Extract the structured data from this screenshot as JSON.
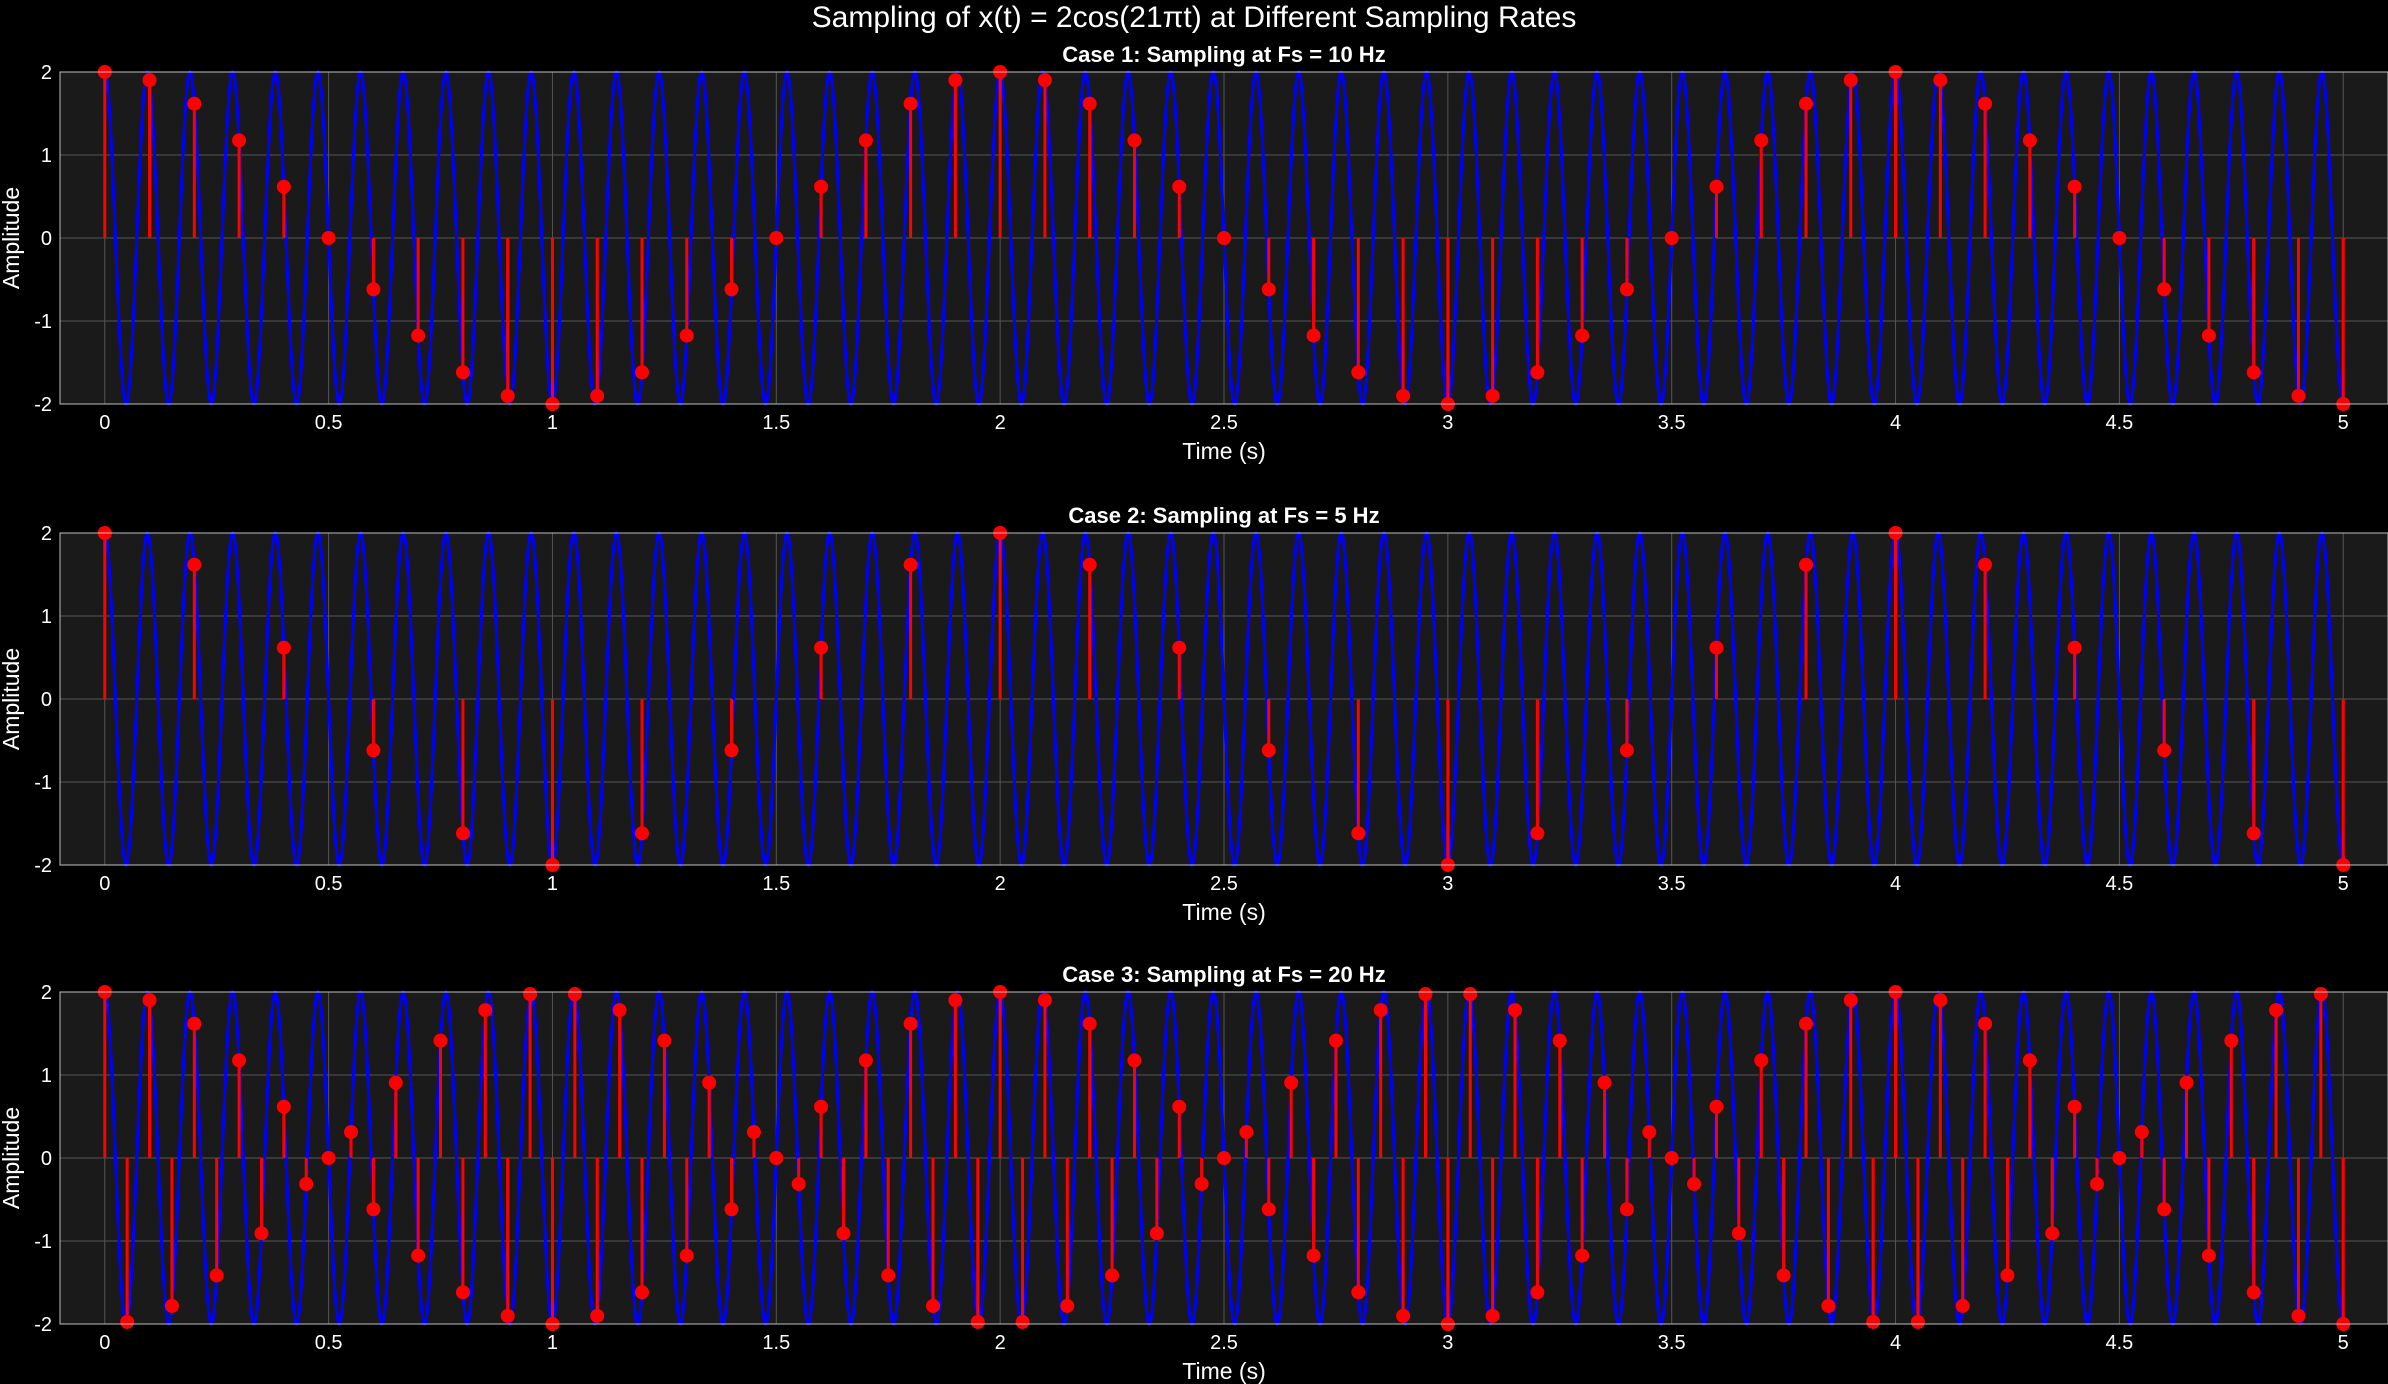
{
  "figure": {
    "title": "Sampling of x(t) = 2cos(21πt) at Different Sampling Rates",
    "background": "#000000"
  },
  "style": {
    "axes_background": "#1a1a1a",
    "grid_color": "#555555",
    "axes_edge_color": "#bfbfbf",
    "text_color": "#ffffff",
    "signal_color": "#0000ff",
    "sample_color": "#ff0000"
  },
  "chart_data": [
    {
      "type": "stem",
      "title": "Case 1: Sampling at Fs = 10 Hz",
      "xlabel": "Time (s)",
      "ylabel": "Amplitude",
      "xlim": [
        -0.1,
        5.1
      ],
      "ylim": [
        -2,
        2
      ],
      "xticks": [
        0,
        0.5,
        1,
        1.5,
        2,
        2.5,
        3,
        3.5,
        4,
        4.5,
        5
      ],
      "xtick_labels": [
        "0",
        "0.5",
        "1",
        "1.5",
        "2",
        "2.5",
        "3",
        "3.5",
        "4",
        "4.5",
        "5"
      ],
      "yticks": [
        -2,
        -1,
        0,
        1,
        2
      ],
      "ytick_labels": [
        "-2",
        "-1",
        "0",
        "1",
        "2"
      ],
      "grid": true,
      "signal": {
        "amplitude": 2,
        "angular_frequency_per_pi": 21,
        "t_start": 0,
        "t_end": 5
      },
      "samples": {
        "fs_hz": 10,
        "t_start": 0,
        "t_end": 5
      }
    },
    {
      "type": "stem",
      "title": "Case 2: Sampling at Fs = 5 Hz",
      "xlabel": "Time (s)",
      "ylabel": "Amplitude",
      "xlim": [
        -0.1,
        5.1
      ],
      "ylim": [
        -2,
        2
      ],
      "xticks": [
        0,
        0.5,
        1,
        1.5,
        2,
        2.5,
        3,
        3.5,
        4,
        4.5,
        5
      ],
      "xtick_labels": [
        "0",
        "0.5",
        "1",
        "1.5",
        "2",
        "2.5",
        "3",
        "3.5",
        "4",
        "4.5",
        "5"
      ],
      "yticks": [
        -2,
        -1,
        0,
        1,
        2
      ],
      "ytick_labels": [
        "-2",
        "-1",
        "0",
        "1",
        "2"
      ],
      "grid": true,
      "signal": {
        "amplitude": 2,
        "angular_frequency_per_pi": 21,
        "t_start": 0,
        "t_end": 5
      },
      "samples": {
        "fs_hz": 5,
        "t_start": 0,
        "t_end": 5
      }
    },
    {
      "type": "stem",
      "title": "Case 3: Sampling at Fs = 20 Hz",
      "xlabel": "Time (s)",
      "ylabel": "Amplitude",
      "xlim": [
        -0.1,
        5.1
      ],
      "ylim": [
        -2,
        2
      ],
      "xticks": [
        0,
        0.5,
        1,
        1.5,
        2,
        2.5,
        3,
        3.5,
        4,
        4.5,
        5
      ],
      "xtick_labels": [
        "0",
        "0.5",
        "1",
        "1.5",
        "2",
        "2.5",
        "3",
        "3.5",
        "4",
        "4.5",
        "5"
      ],
      "yticks": [
        -2,
        -1,
        0,
        1,
        2
      ],
      "ytick_labels": [
        "-2",
        "-1",
        "0",
        "1",
        "2"
      ],
      "grid": true,
      "signal": {
        "amplitude": 2,
        "angular_frequency_per_pi": 21,
        "t_start": 0,
        "t_end": 5
      },
      "samples": {
        "fs_hz": 20,
        "t_start": 0,
        "t_end": 5
      }
    }
  ]
}
